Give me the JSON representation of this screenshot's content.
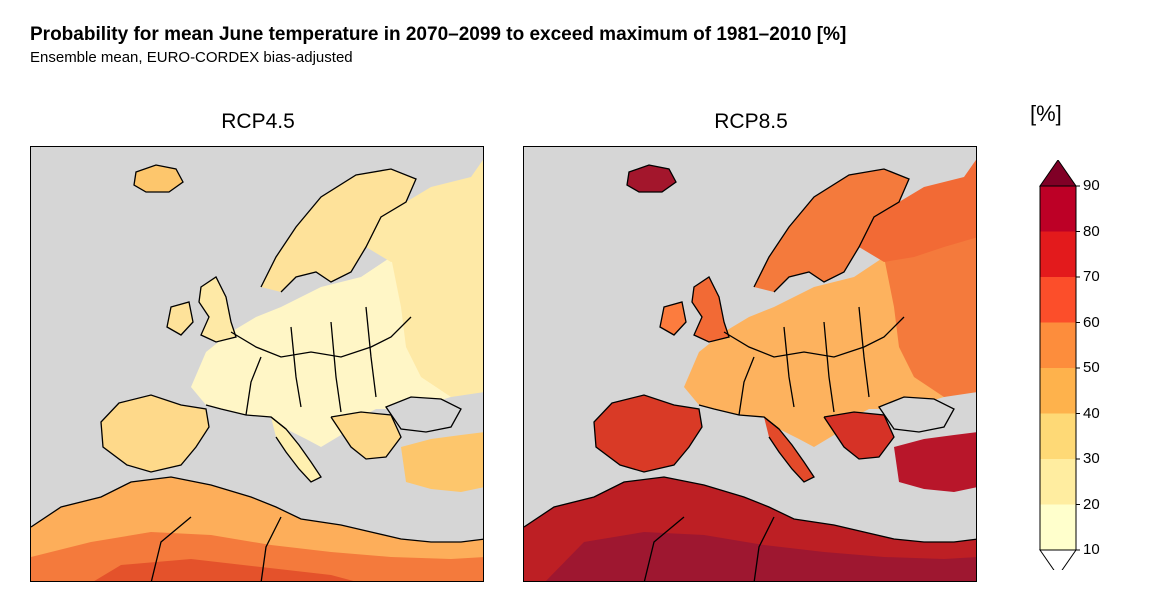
{
  "title": "Probability for mean June temperature in 2070–2099 to exceed maximum of 1981–2010 [%]",
  "subtitle": "Ensemble mean, EURO-CORDEX bias-adjusted",
  "panels": [
    {
      "label": "RCP4.5",
      "level": "low"
    },
    {
      "label": "RCP8.5",
      "level": "high"
    }
  ],
  "colorbar": {
    "unit": "[%]",
    "ticks": [
      "10",
      "20",
      "30",
      "40",
      "50",
      "60",
      "70",
      "80",
      "90"
    ],
    "colors": [
      "#ffffcc",
      "#ffeda0",
      "#fed976",
      "#feb24c",
      "#fd8d3c",
      "#fc4e2a",
      "#e31a1c",
      "#bd0026"
    ],
    "under_color": "#ffffff",
    "over_color": "#800026"
  },
  "colors": {
    "sea": "#d6d6d6",
    "border": "#000000"
  }
}
